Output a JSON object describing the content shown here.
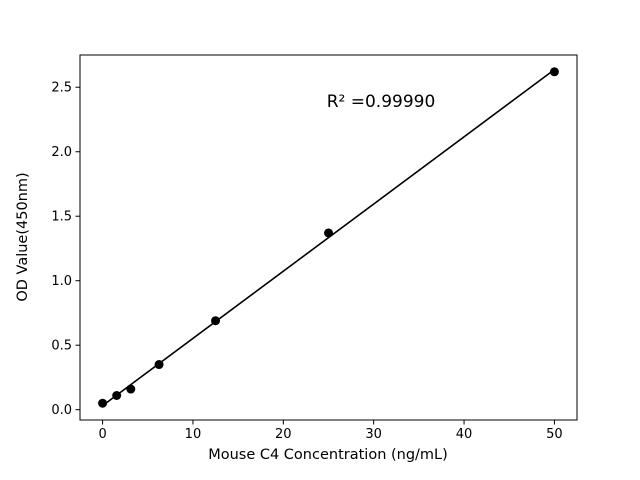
{
  "chart_data": {
    "type": "scatter",
    "title": "",
    "xlabel": "Mouse C4 Concentration (ng/mL)",
    "ylabel": "OD Value(450nm)",
    "points": {
      "x": [
        0,
        1.56,
        3.12,
        6.25,
        12.5,
        25,
        50
      ],
      "y": [
        0.05,
        0.11,
        0.16,
        0.35,
        0.69,
        1.37,
        2.62
      ]
    },
    "fit_line": {
      "type": "linear"
    },
    "annotation": {
      "text": "R² =0.99990"
    },
    "xlim": [
      -2.5,
      52.5
    ],
    "ylim": [
      -0.08,
      2.75
    ],
    "xticks": {
      "values": [
        0,
        10,
        20,
        30,
        40,
        50
      ],
      "labels": [
        "0",
        "10",
        "20",
        "30",
        "40",
        "50"
      ]
    },
    "yticks": {
      "values": [
        0,
        0.5,
        1.0,
        1.5,
        2.0,
        2.5
      ],
      "labels": [
        "0.0",
        "0.5",
        "1.0",
        "1.5",
        "2.0",
        "2.5"
      ]
    },
    "grid": false,
    "legend": null,
    "colors": {
      "marker": "#000000",
      "line": "#000000",
      "axis": "#000000",
      "background": "#ffffff"
    }
  }
}
